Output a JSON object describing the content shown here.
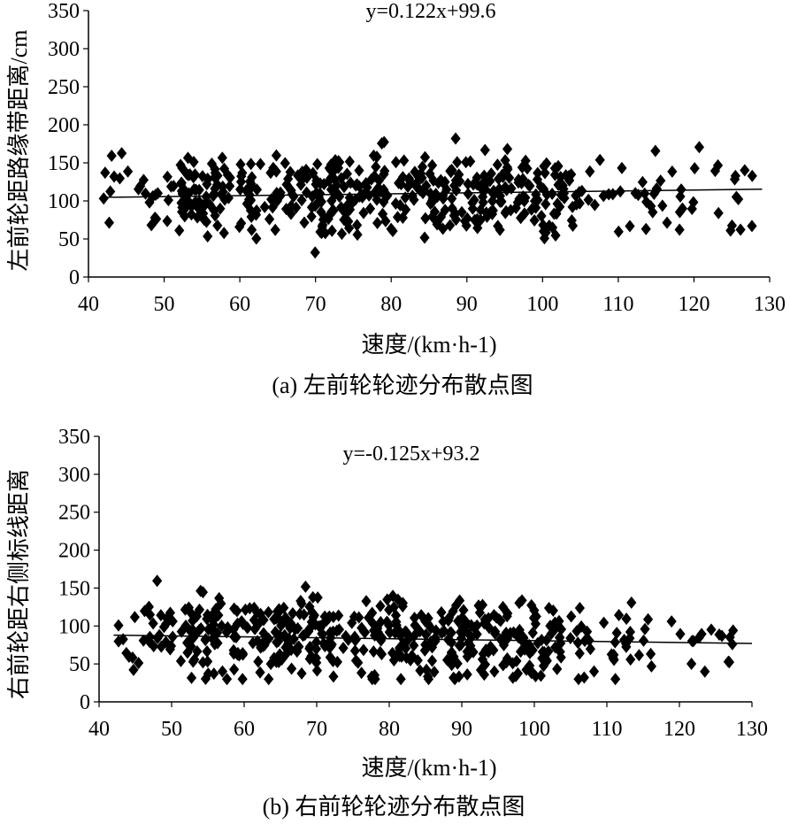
{
  "chart_data": [
    {
      "type": "scatter",
      "equation": "y=0.122x+99.6",
      "xlabel": "速度/(km·h-1)",
      "ylabel": "左前轮距路缘带距离/cm",
      "caption": "(a) 左前轮轮迹分布散点图",
      "xlim": [
        40,
        130
      ],
      "ylim": [
        0,
        350
      ],
      "xticks": [
        "40",
        "50",
        "60",
        "70",
        "80",
        "90",
        "100",
        "110",
        "120",
        "130"
      ],
      "yticks": [
        "0",
        "50",
        "100",
        "150",
        "200",
        "250",
        "300",
        "350"
      ],
      "trendline": {
        "slope": 0.122,
        "intercept": 99.6,
        "x_range": [
          42,
          129
        ]
      },
      "marker": "diamond",
      "color": "#000000"
    },
    {
      "type": "scatter",
      "equation": "y=-0.125x+93.2",
      "xlabel": "速度/(km·h-1)",
      "ylabel": "右前轮距右侧标线距离",
      "caption": "(b) 右前轮轮迹分布散点图",
      "xlim": [
        40,
        130
      ],
      "ylim": [
        0,
        350
      ],
      "xticks": [
        "40",
        "50",
        "60",
        "70",
        "80",
        "90",
        "100",
        "110",
        "120",
        "130"
      ],
      "yticks": [
        "0",
        "50",
        "100",
        "150",
        "200",
        "250",
        "300",
        "350"
      ],
      "trendline": {
        "slope": -0.125,
        "intercept": 93.2,
        "x_range": [
          42,
          130
        ]
      },
      "marker": "diamond",
      "color": "#000000"
    }
  ]
}
